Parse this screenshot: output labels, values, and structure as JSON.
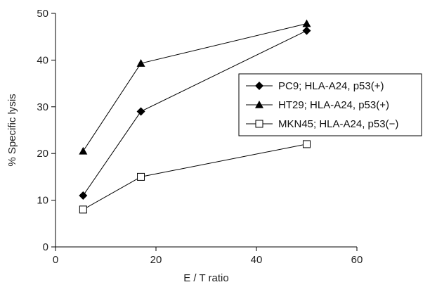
{
  "chart_data": {
    "type": "line",
    "xlabel": "E / T ratio",
    "ylabel": "% Specific lysis",
    "xlim": [
      0,
      60
    ],
    "ylim": [
      0,
      50
    ],
    "xticks": [
      "0",
      "20",
      "40",
      "60"
    ],
    "yticks": [
      "0",
      "10",
      "20",
      "30",
      "40",
      "50"
    ],
    "grid": false,
    "legend_position": "right",
    "series": [
      {
        "name": "PC9; HLA-A24, p53(+)",
        "marker": "diamond-filled",
        "color": "#000000",
        "x": [
          5.5,
          17,
          50
        ],
        "y": [
          11,
          29,
          46.3
        ]
      },
      {
        "name": "HT29; HLA-A24, p53(+)",
        "marker": "triangle-filled",
        "color": "#000000",
        "x": [
          5.5,
          17,
          50
        ],
        "y": [
          20.5,
          39.3,
          47.8
        ]
      },
      {
        "name": "MKN45; HLA-A24, p53(−)",
        "marker": "square-open",
        "color": "#000000",
        "x": [
          5.5,
          17,
          50
        ],
        "y": [
          8,
          15,
          22
        ]
      }
    ]
  }
}
